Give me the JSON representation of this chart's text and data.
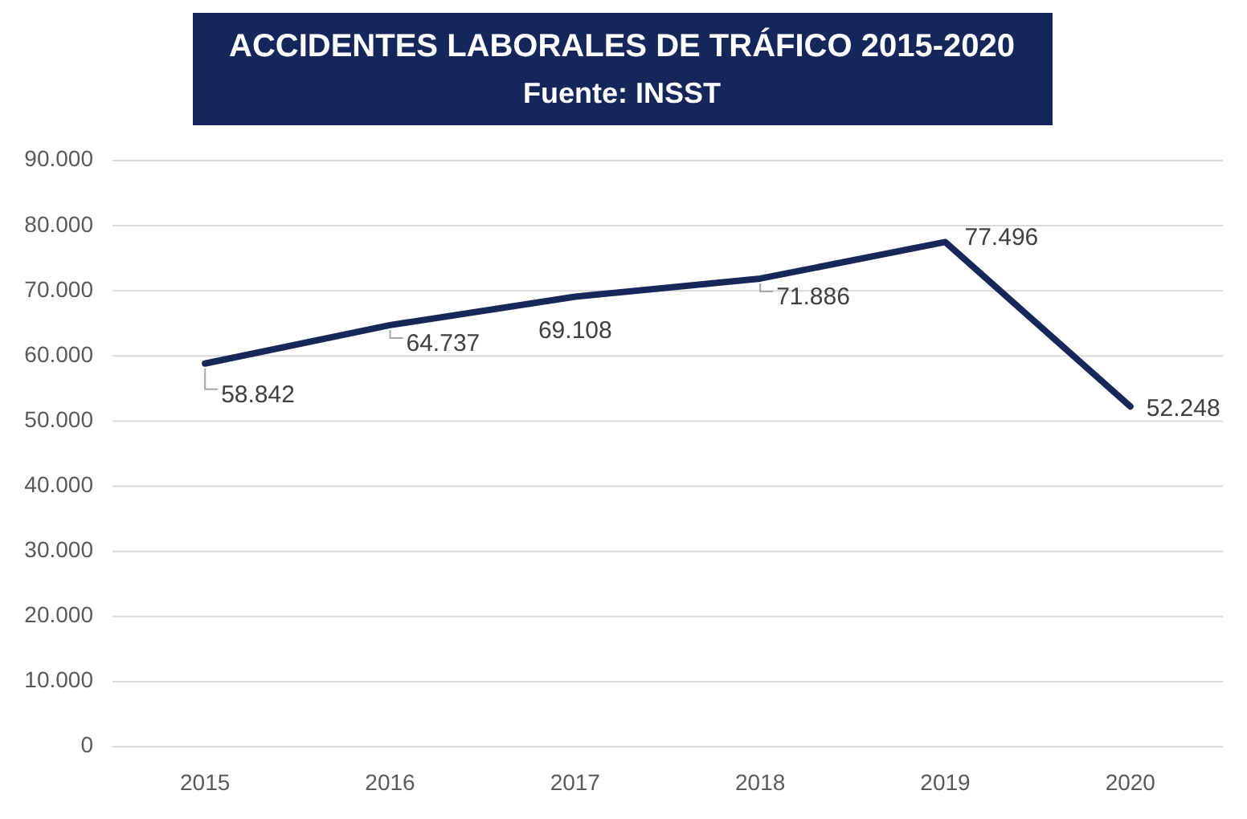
{
  "chart_data": {
    "type": "line",
    "title": "ACCIDENTES LABORALES DE TRÁFICO 2015-2020",
    "subtitle": "Fuente: INSST",
    "categories": [
      "2015",
      "2016",
      "2017",
      "2018",
      "2019",
      "2020"
    ],
    "series": [
      {
        "color": "#17275a",
        "values": [
          58842,
          64737,
          69108,
          71886,
          77496,
          52248
        ],
        "value_labels": [
          "58.842",
          "64.737",
          "69.108",
          "71.886",
          "77.496",
          "52.248"
        ]
      }
    ],
    "ylim": [
      0,
      90000
    ],
    "yticks": [
      {
        "value": 0,
        "label": "0"
      },
      {
        "value": 10000,
        "label": "10.000"
      },
      {
        "value": 20000,
        "label": "20.000"
      },
      {
        "value": 30000,
        "label": "30.000"
      },
      {
        "value": 40000,
        "label": "40.000"
      },
      {
        "value": 50000,
        "label": "50.000"
      },
      {
        "value": 60000,
        "label": "60.000"
      },
      {
        "value": 70000,
        "label": "70.000"
      },
      {
        "value": 80000,
        "label": "80.000"
      },
      {
        "value": 90000,
        "label": "90.000"
      }
    ],
    "grid": "y",
    "marker": "none",
    "line_style": "solid"
  }
}
